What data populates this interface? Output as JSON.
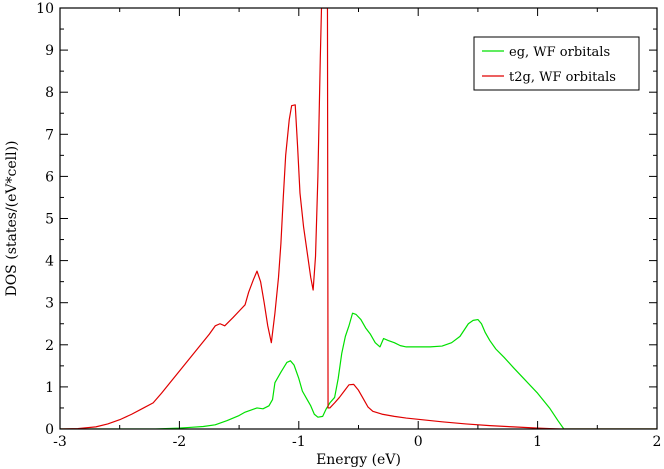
{
  "chart_data": {
    "type": "line",
    "xlabel": "Energy (eV)",
    "ylabel": "DOS (states/(eV*cell))",
    "xlim": [
      -3,
      2
    ],
    "ylim": [
      0,
      10
    ],
    "xticks": [
      -3,
      -2,
      -1,
      0,
      1,
      2
    ],
    "yticks": [
      0,
      1,
      2,
      3,
      4,
      5,
      6,
      7,
      8,
      9,
      10
    ],
    "grid": false,
    "legend_position": "top-right",
    "series": [
      {
        "name": "eg, WF orbitals",
        "color": "#00e000",
        "points": [
          [
            -3.0,
            0.0
          ],
          [
            -2.5,
            0.0
          ],
          [
            -2.2,
            0.0
          ],
          [
            -2.0,
            0.02
          ],
          [
            -1.9,
            0.04
          ],
          [
            -1.8,
            0.06
          ],
          [
            -1.7,
            0.1
          ],
          [
            -1.6,
            0.2
          ],
          [
            -1.5,
            0.32
          ],
          [
            -1.45,
            0.4
          ],
          [
            -1.4,
            0.45
          ],
          [
            -1.35,
            0.5
          ],
          [
            -1.3,
            0.48
          ],
          [
            -1.25,
            0.55
          ],
          [
            -1.22,
            0.7
          ],
          [
            -1.2,
            1.1
          ],
          [
            -1.15,
            1.35
          ],
          [
            -1.1,
            1.58
          ],
          [
            -1.07,
            1.62
          ],
          [
            -1.04,
            1.52
          ],
          [
            -1.0,
            1.2
          ],
          [
            -0.97,
            0.9
          ],
          [
            -0.93,
            0.7
          ],
          [
            -0.9,
            0.55
          ],
          [
            -0.87,
            0.35
          ],
          [
            -0.84,
            0.28
          ],
          [
            -0.8,
            0.3
          ],
          [
            -0.77,
            0.48
          ],
          [
            -0.74,
            0.62
          ],
          [
            -0.7,
            0.75
          ],
          [
            -0.67,
            1.2
          ],
          [
            -0.64,
            1.8
          ],
          [
            -0.61,
            2.2
          ],
          [
            -0.58,
            2.45
          ],
          [
            -0.55,
            2.75
          ],
          [
            -0.52,
            2.72
          ],
          [
            -0.48,
            2.6
          ],
          [
            -0.44,
            2.4
          ],
          [
            -0.4,
            2.25
          ],
          [
            -0.36,
            2.05
          ],
          [
            -0.32,
            1.95
          ],
          [
            -0.29,
            2.15
          ],
          [
            -0.25,
            2.1
          ],
          [
            -0.2,
            2.05
          ],
          [
            -0.15,
            1.98
          ],
          [
            -0.1,
            1.95
          ],
          [
            0.0,
            1.95
          ],
          [
            0.1,
            1.95
          ],
          [
            0.2,
            1.97
          ],
          [
            0.28,
            2.05
          ],
          [
            0.35,
            2.2
          ],
          [
            0.42,
            2.5
          ],
          [
            0.46,
            2.58
          ],
          [
            0.5,
            2.6
          ],
          [
            0.53,
            2.5
          ],
          [
            0.56,
            2.3
          ],
          [
            0.6,
            2.1
          ],
          [
            0.65,
            1.9
          ],
          [
            0.72,
            1.7
          ],
          [
            0.8,
            1.45
          ],
          [
            0.9,
            1.15
          ],
          [
            1.0,
            0.85
          ],
          [
            1.1,
            0.5
          ],
          [
            1.17,
            0.2
          ],
          [
            1.22,
            0.0
          ],
          [
            2.0,
            0.0
          ]
        ]
      },
      {
        "name": "t2g, WF orbitals",
        "color": "#e00000",
        "points": [
          [
            -3.0,
            0.0
          ],
          [
            -2.85,
            0.01
          ],
          [
            -2.7,
            0.05
          ],
          [
            -2.6,
            0.12
          ],
          [
            -2.5,
            0.22
          ],
          [
            -2.4,
            0.35
          ],
          [
            -2.3,
            0.5
          ],
          [
            -2.22,
            0.62
          ],
          [
            -2.15,
            0.85
          ],
          [
            -2.05,
            1.2
          ],
          [
            -1.95,
            1.55
          ],
          [
            -1.85,
            1.9
          ],
          [
            -1.75,
            2.25
          ],
          [
            -1.7,
            2.45
          ],
          [
            -1.66,
            2.5
          ],
          [
            -1.62,
            2.45
          ],
          [
            -1.55,
            2.65
          ],
          [
            -1.5,
            2.8
          ],
          [
            -1.45,
            2.95
          ],
          [
            -1.42,
            3.25
          ],
          [
            -1.38,
            3.55
          ],
          [
            -1.35,
            3.75
          ],
          [
            -1.32,
            3.5
          ],
          [
            -1.29,
            3.0
          ],
          [
            -1.26,
            2.45
          ],
          [
            -1.23,
            2.05
          ],
          [
            -1.2,
            2.75
          ],
          [
            -1.17,
            3.6
          ],
          [
            -1.15,
            4.4
          ],
          [
            -1.13,
            5.5
          ],
          [
            -1.11,
            6.5
          ],
          [
            -1.08,
            7.35
          ],
          [
            -1.06,
            7.68
          ],
          [
            -1.03,
            7.7
          ],
          [
            -1.01,
            6.7
          ],
          [
            -0.99,
            5.6
          ],
          [
            -0.96,
            4.8
          ],
          [
            -0.93,
            4.2
          ],
          [
            -0.9,
            3.6
          ],
          [
            -0.88,
            3.3
          ],
          [
            -0.86,
            4.1
          ],
          [
            -0.84,
            6.0
          ],
          [
            -0.82,
            8.8
          ],
          [
            -0.81,
            10.0
          ],
          [
            -0.77,
            10.0
          ],
          [
            -0.76,
            10.0
          ],
          [
            -0.755,
            0.5
          ],
          [
            -0.74,
            0.5
          ],
          [
            -0.7,
            0.62
          ],
          [
            -0.66,
            0.75
          ],
          [
            -0.62,
            0.9
          ],
          [
            -0.58,
            1.05
          ],
          [
            -0.54,
            1.06
          ],
          [
            -0.5,
            0.92
          ],
          [
            -0.46,
            0.72
          ],
          [
            -0.42,
            0.52
          ],
          [
            -0.38,
            0.42
          ],
          [
            -0.3,
            0.35
          ],
          [
            -0.2,
            0.3
          ],
          [
            -0.1,
            0.26
          ],
          [
            0.0,
            0.23
          ],
          [
            0.2,
            0.17
          ],
          [
            0.4,
            0.12
          ],
          [
            0.6,
            0.08
          ],
          [
            0.8,
            0.05
          ],
          [
            1.0,
            0.02
          ],
          [
            1.1,
            0.01
          ],
          [
            1.2,
            0.0
          ],
          [
            2.0,
            0.0
          ]
        ]
      }
    ]
  }
}
